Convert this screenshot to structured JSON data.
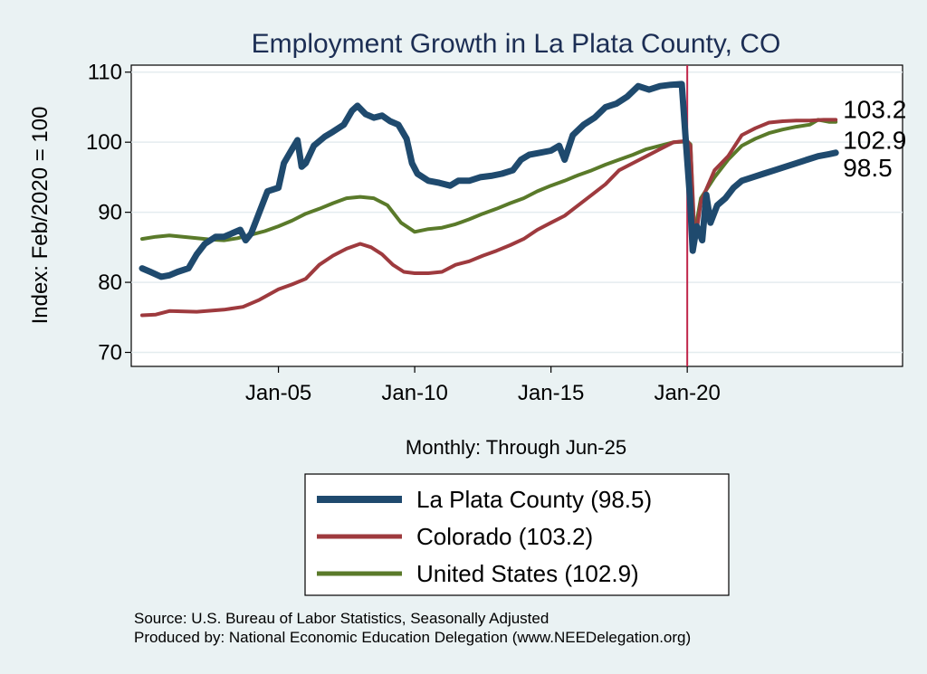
{
  "chart_data": {
    "type": "line",
    "title": "Employment Growth in La Plata  County, CO",
    "xlabel": "Monthly: Through Jun-25",
    "ylabel": "Index: Feb/2020 = 100",
    "ylim": [
      68,
      111
    ],
    "xlim": [
      1999.6,
      2027.9
    ],
    "y_ticks": [
      70,
      80,
      90,
      100,
      110
    ],
    "x_ticks": [
      {
        "label": "Jan-05",
        "value": 2005
      },
      {
        "label": "Jan-10",
        "value": 2010
      },
      {
        "label": "Jan-15",
        "value": 2015
      },
      {
        "label": "Jan-20",
        "value": 2020
      }
    ],
    "reference_line": {
      "x": 2020.0,
      "color": "#c0264a"
    },
    "grid": true,
    "legend_position": "bottom",
    "series": [
      {
        "name": "La Plata  County",
        "legend_label": "La Plata  County (98.5)",
        "end_label": "98.5",
        "last_value": 98.5,
        "color": "#1f4a6e",
        "width": 7,
        "points": [
          [
            2000.0,
            82
          ],
          [
            2000.3,
            81.5
          ],
          [
            2000.7,
            80.8
          ],
          [
            2001.0,
            81
          ],
          [
            2001.3,
            81.5
          ],
          [
            2001.7,
            82
          ],
          [
            2002.0,
            84
          ],
          [
            2002.3,
            85.5
          ],
          [
            2002.7,
            86.5
          ],
          [
            2003.0,
            86.5
          ],
          [
            2003.3,
            87
          ],
          [
            2003.6,
            87.5
          ],
          [
            2003.8,
            86
          ],
          [
            2004.0,
            87
          ],
          [
            2004.3,
            90
          ],
          [
            2004.6,
            93
          ],
          [
            2005.0,
            93.5
          ],
          [
            2005.2,
            97
          ],
          [
            2005.5,
            99
          ],
          [
            2005.7,
            100.3
          ],
          [
            2005.85,
            96.5
          ],
          [
            2006.0,
            97
          ],
          [
            2006.3,
            99.5
          ],
          [
            2006.7,
            100.8
          ],
          [
            2007.0,
            101.5
          ],
          [
            2007.4,
            102.5
          ],
          [
            2007.7,
            104.5
          ],
          [
            2007.9,
            105.2
          ],
          [
            2008.2,
            104
          ],
          [
            2008.5,
            103.5
          ],
          [
            2008.8,
            103.8
          ],
          [
            2009.1,
            103
          ],
          [
            2009.4,
            102.5
          ],
          [
            2009.7,
            100.5
          ],
          [
            2009.9,
            97
          ],
          [
            2010.1,
            95.5
          ],
          [
            2010.5,
            94.5
          ],
          [
            2010.9,
            94.2
          ],
          [
            2011.3,
            93.8
          ],
          [
            2011.6,
            94.5
          ],
          [
            2012.0,
            94.5
          ],
          [
            2012.4,
            95
          ],
          [
            2012.8,
            95.2
          ],
          [
            2013.2,
            95.5
          ],
          [
            2013.6,
            96
          ],
          [
            2013.9,
            97.5
          ],
          [
            2014.2,
            98.2
          ],
          [
            2014.6,
            98.5
          ],
          [
            2015.0,
            98.8
          ],
          [
            2015.3,
            99.5
          ],
          [
            2015.5,
            97.5
          ],
          [
            2015.8,
            101
          ],
          [
            2016.2,
            102.5
          ],
          [
            2016.6,
            103.5
          ],
          [
            2017.0,
            105
          ],
          [
            2017.4,
            105.5
          ],
          [
            2017.8,
            106.5
          ],
          [
            2018.2,
            108
          ],
          [
            2018.6,
            107.5
          ],
          [
            2019.0,
            108
          ],
          [
            2019.4,
            108.2
          ],
          [
            2019.8,
            108.3
          ],
          [
            2019.95,
            100
          ],
          [
            2020.1,
            92
          ],
          [
            2020.2,
            84.5
          ],
          [
            2020.35,
            88
          ],
          [
            2020.55,
            86
          ],
          [
            2020.7,
            92.5
          ],
          [
            2020.85,
            88.5
          ],
          [
            2021.1,
            91
          ],
          [
            2021.4,
            92
          ],
          [
            2021.7,
            93.5
          ],
          [
            2022.0,
            94.5
          ],
          [
            2022.4,
            95
          ],
          [
            2022.8,
            95.5
          ],
          [
            2023.2,
            96
          ],
          [
            2023.6,
            96.5
          ],
          [
            2024.0,
            97
          ],
          [
            2024.4,
            97.5
          ],
          [
            2024.8,
            98
          ],
          [
            2025.2,
            98.3
          ],
          [
            2025.45,
            98.5
          ]
        ]
      },
      {
        "name": "Colorado",
        "legend_label": "Colorado (103.2)",
        "end_label": "103.2",
        "last_value": 103.2,
        "color": "#9e3a3e",
        "width": 4,
        "points": [
          [
            2000.0,
            75.3
          ],
          [
            2000.5,
            75.4
          ],
          [
            2001.0,
            75.9
          ],
          [
            2002.0,
            75.8
          ],
          [
            2003.0,
            76.1
          ],
          [
            2003.7,
            76.5
          ],
          [
            2004.3,
            77.5
          ],
          [
            2005.0,
            79
          ],
          [
            2005.5,
            79.7
          ],
          [
            2006.0,
            80.5
          ],
          [
            2006.5,
            82.5
          ],
          [
            2007.0,
            83.8
          ],
          [
            2007.5,
            84.8
          ],
          [
            2008.0,
            85.5
          ],
          [
            2008.4,
            85
          ],
          [
            2008.8,
            84
          ],
          [
            2009.2,
            82.5
          ],
          [
            2009.6,
            81.5
          ],
          [
            2010.0,
            81.3
          ],
          [
            2010.5,
            81.3
          ],
          [
            2011.0,
            81.5
          ],
          [
            2011.5,
            82.5
          ],
          [
            2012.0,
            83
          ],
          [
            2012.5,
            83.8
          ],
          [
            2013.0,
            84.5
          ],
          [
            2013.5,
            85.3
          ],
          [
            2014.0,
            86.2
          ],
          [
            2014.5,
            87.5
          ],
          [
            2015.0,
            88.5
          ],
          [
            2015.5,
            89.5
          ],
          [
            2016.0,
            91
          ],
          [
            2016.5,
            92.5
          ],
          [
            2017.0,
            94
          ],
          [
            2017.5,
            96
          ],
          [
            2018.0,
            97
          ],
          [
            2018.5,
            98
          ],
          [
            2019.0,
            99
          ],
          [
            2019.5,
            100
          ],
          [
            2020.0,
            100.2
          ],
          [
            2020.12,
            99.5
          ],
          [
            2020.28,
            85.5
          ],
          [
            2020.5,
            91.5
          ],
          [
            2021.0,
            96
          ],
          [
            2021.5,
            98
          ],
          [
            2022.0,
            101
          ],
          [
            2022.5,
            102
          ],
          [
            2023.0,
            102.8
          ],
          [
            2023.5,
            103
          ],
          [
            2024.0,
            103.1
          ],
          [
            2024.5,
            103.1
          ],
          [
            2025.0,
            103.2
          ],
          [
            2025.45,
            103.2
          ]
        ]
      },
      {
        "name": "United States",
        "legend_label": "United States (102.9)",
        "end_label": "102.9",
        "last_value": 102.9,
        "color": "#5a7a2a",
        "width": 4,
        "points": [
          [
            2000.0,
            86.2
          ],
          [
            2000.5,
            86.5
          ],
          [
            2001.0,
            86.7
          ],
          [
            2001.5,
            86.5
          ],
          [
            2002.0,
            86.3
          ],
          [
            2002.5,
            86.1
          ],
          [
            2003.0,
            86.0
          ],
          [
            2003.5,
            86.3
          ],
          [
            2004.0,
            86.8
          ],
          [
            2004.5,
            87.3
          ],
          [
            2005.0,
            88
          ],
          [
            2005.5,
            88.8
          ],
          [
            2006.0,
            89.8
          ],
          [
            2006.5,
            90.5
          ],
          [
            2007.0,
            91.3
          ],
          [
            2007.5,
            92
          ],
          [
            2008.0,
            92.2
          ],
          [
            2008.5,
            92
          ],
          [
            2009.0,
            91
          ],
          [
            2009.5,
            88.5
          ],
          [
            2010.0,
            87.2
          ],
          [
            2010.5,
            87.6
          ],
          [
            2011.0,
            87.8
          ],
          [
            2011.5,
            88.3
          ],
          [
            2012.0,
            89
          ],
          [
            2012.5,
            89.8
          ],
          [
            2013.0,
            90.5
          ],
          [
            2013.5,
            91.3
          ],
          [
            2014.0,
            92
          ],
          [
            2014.5,
            93
          ],
          [
            2015.0,
            93.8
          ],
          [
            2015.5,
            94.5
          ],
          [
            2016.0,
            95.3
          ],
          [
            2016.5,
            96
          ],
          [
            2017.0,
            96.8
          ],
          [
            2017.5,
            97.5
          ],
          [
            2018.0,
            98.2
          ],
          [
            2018.5,
            99
          ],
          [
            2019.0,
            99.5
          ],
          [
            2019.5,
            100
          ],
          [
            2020.0,
            100.1
          ],
          [
            2020.12,
            99.7
          ],
          [
            2020.25,
            86.5
          ],
          [
            2020.5,
            92
          ],
          [
            2021.0,
            95
          ],
          [
            2021.5,
            97.5
          ],
          [
            2022.0,
            99.5
          ],
          [
            2022.5,
            100.5
          ],
          [
            2023.0,
            101.3
          ],
          [
            2023.5,
            101.8
          ],
          [
            2024.0,
            102.2
          ],
          [
            2024.5,
            102.5
          ],
          [
            2024.8,
            103.2
          ],
          [
            2025.2,
            102.9
          ],
          [
            2025.45,
            102.9
          ]
        ]
      }
    ],
    "source_lines": [
      "Source: U.S. Bureau of Labor Statistics, Seasonally Adjusted",
      "Produced by: National Economic Education Delegation (www.NEEDelegation.org)"
    ]
  }
}
